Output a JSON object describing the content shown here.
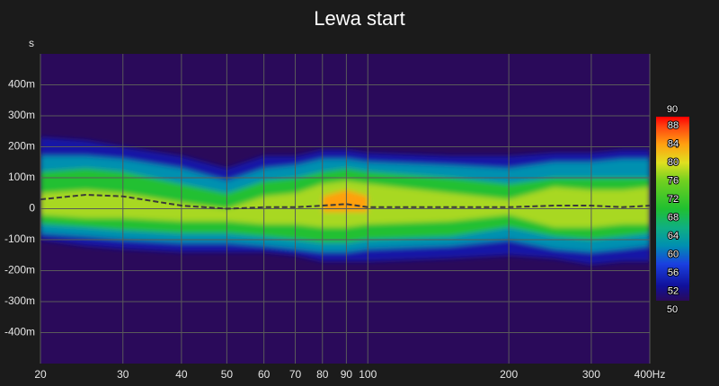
{
  "chart_data": {
    "type": "contour",
    "title": "Lewa start",
    "y_label": "s",
    "xscale": "log",
    "xlim": [
      20,
      400
    ],
    "xticks": [
      20,
      30,
      40,
      50,
      60,
      70,
      80,
      90,
      100,
      200,
      300,
      {
        "value": 400,
        "label": "400Hz"
      }
    ],
    "ylim": [
      -0.5,
      0.5
    ],
    "yticks": [
      {
        "value": 0.4,
        "label": "400m"
      },
      {
        "value": 0.3,
        "label": "300m"
      },
      {
        "value": 0.2,
        "label": "200m"
      },
      {
        "value": 0.1,
        "label": "100m"
      },
      0,
      {
        "value": -0.1,
        "label": "-100m"
      },
      {
        "value": -0.2,
        "label": "-200m"
      },
      {
        "value": -0.3,
        "label": "-300m"
      },
      {
        "value": -0.4,
        "label": "-400m"
      }
    ],
    "grid": true,
    "x": [
      20,
      25,
      30,
      40,
      50,
      60,
      70,
      80,
      90,
      100,
      150,
      200,
      250,
      300,
      350,
      400
    ],
    "levels": [
      {
        "level": 54,
        "upper": [
          0.23,
          0.22,
          0.2,
          0.17,
          0.13,
          0.17,
          0.17,
          0.19,
          0.19,
          0.18,
          0.17,
          0.17,
          0.18,
          0.18,
          0.19,
          0.19
        ],
        "lower": [
          -0.1,
          -0.12,
          -0.13,
          -0.14,
          -0.14,
          -0.14,
          -0.15,
          -0.17,
          -0.17,
          -0.17,
          -0.16,
          -0.15,
          -0.16,
          -0.18,
          -0.17,
          -0.17
        ]
      },
      {
        "level": 62,
        "upper": [
          0.17,
          0.17,
          0.16,
          0.13,
          0.09,
          0.13,
          0.14,
          0.16,
          0.16,
          0.15,
          0.14,
          0.13,
          0.15,
          0.15,
          0.16,
          0.16
        ],
        "lower": [
          -0.08,
          -0.09,
          -0.1,
          -0.11,
          -0.11,
          -0.12,
          -0.13,
          -0.14,
          -0.14,
          -0.13,
          -0.12,
          -0.1,
          -0.13,
          -0.14,
          -0.13,
          -0.12
        ]
      },
      {
        "level": 70,
        "upper": [
          0.12,
          0.13,
          0.12,
          0.08,
          0.05,
          0.09,
          0.1,
          0.12,
          0.13,
          0.12,
          0.1,
          0.08,
          0.1,
          0.1,
          0.1,
          0.1
        ],
        "lower": [
          -0.05,
          -0.06,
          -0.07,
          -0.08,
          -0.08,
          -0.09,
          -0.1,
          -0.11,
          -0.11,
          -0.1,
          -0.09,
          -0.06,
          -0.09,
          -0.1,
          -0.09,
          -0.08
        ]
      },
      {
        "level": 78,
        "upper": [
          0.05,
          0.06,
          0.05,
          0.02,
          0,
          0.04,
          0.05,
          0.08,
          0.09,
          0.08,
          0.05,
          0.03,
          0.07,
          0.06,
          0.06,
          0.07
        ],
        "lower": [
          -0.02,
          -0.03,
          -0.03,
          -0.04,
          -0.04,
          -0.05,
          -0.05,
          -0.06,
          -0.06,
          -0.05,
          -0.04,
          -0.02,
          -0.06,
          -0.06,
          -0.05,
          -0.05
        ]
      },
      {
        "level": 84,
        "upper": [
          null,
          null,
          null,
          null,
          null,
          null,
          null,
          0.04,
          0.06,
          0.04,
          null,
          null,
          null,
          null,
          null,
          null
        ],
        "lower": [
          null,
          null,
          null,
          null,
          null,
          null,
          null,
          -0.01,
          -0.01,
          -0.01,
          null,
          null,
          null,
          null,
          null,
          null
        ]
      }
    ],
    "line": {
      "color": "#3a3a3a",
      "values": [
        0.03,
        0.045,
        0.04,
        0.01,
        0,
        0.005,
        0.005,
        0.01,
        0.015,
        0.005,
        0.005,
        0.005,
        0.01,
        0.01,
        0.005,
        0.01
      ]
    },
    "colorbar": {
      "range": [
        50,
        90
      ],
      "ticks": [
        52,
        56,
        60,
        64,
        68,
        72,
        76,
        80,
        84,
        88
      ]
    }
  }
}
